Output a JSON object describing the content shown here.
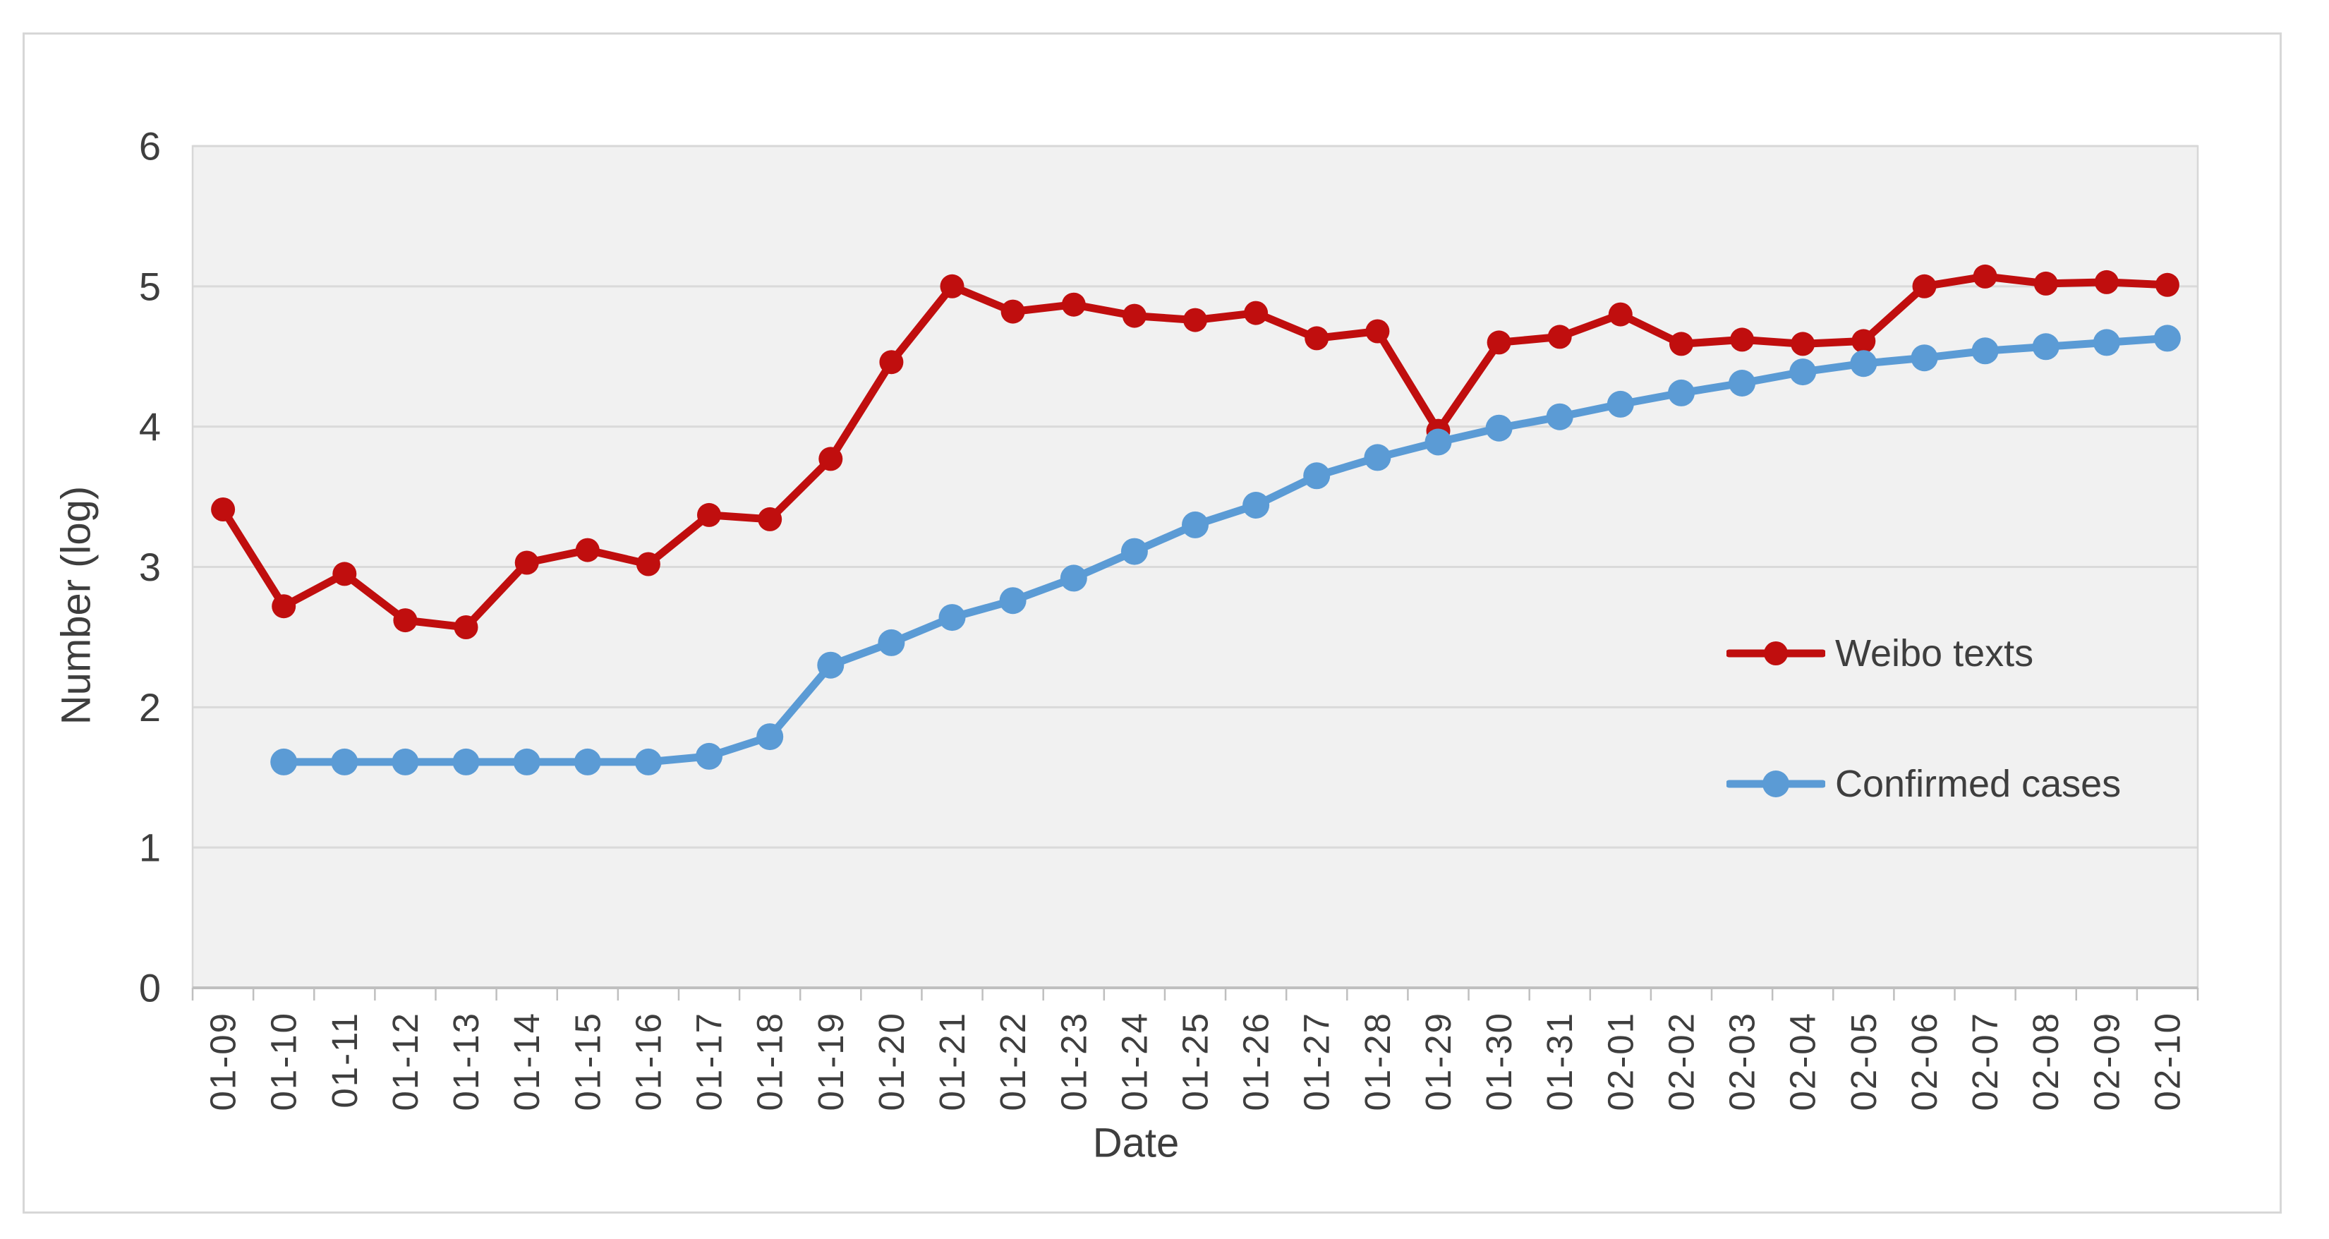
{
  "theme": {
    "page_background": "#FFFFFF",
    "figure_border_color": "#D7D7D7",
    "plot_background": "#F1F1F1",
    "plot_border_color": "#D7D7D7",
    "gridline_color": "#DADADA",
    "axis_color": "#BFBFBF",
    "text_color": "#3E3E3E"
  },
  "chart_data": {
    "type": "line",
    "title": "",
    "xlabel": "Date",
    "ylabel": "Number (log)",
    "ylim": [
      0,
      6
    ],
    "yticks": [
      0,
      1,
      2,
      3,
      4,
      5,
      6
    ],
    "grid": "horizontal",
    "legend_position": "inside-right",
    "categories": [
      "01-09",
      "01-10",
      "01-11",
      "01-12",
      "01-13",
      "01-14",
      "01-15",
      "01-16",
      "01-17",
      "01-18",
      "01-19",
      "01-20",
      "01-21",
      "01-22",
      "01-23",
      "01-24",
      "01-25",
      "01-26",
      "01-27",
      "01-28",
      "01-29",
      "01-30",
      "01-31",
      "02-01",
      "02-02",
      "02-03",
      "02-04",
      "02-05",
      "02-06",
      "02-07",
      "02-08",
      "02-09",
      "02-10"
    ],
    "series": [
      {
        "id": "weibo-texts",
        "name": "Weibo texts",
        "color": "#C00E0E",
        "values": [
          3.41,
          2.72,
          2.95,
          2.62,
          2.57,
          3.03,
          3.12,
          3.02,
          3.37,
          3.34,
          3.77,
          4.46,
          5.0,
          4.82,
          4.87,
          4.79,
          4.76,
          4.81,
          4.63,
          4.68,
          3.97,
          4.6,
          4.64,
          4.8,
          4.59,
          4.62,
          4.59,
          4.61,
          5.0,
          5.07,
          5.02,
          5.03,
          5.01
        ]
      },
      {
        "id": "confirmed-cases",
        "name": "Confirmed cases",
        "color": "#5B9BD5",
        "values": [
          null,
          1.61,
          1.61,
          1.61,
          1.61,
          1.61,
          1.61,
          1.61,
          1.65,
          1.79,
          2.3,
          2.46,
          2.64,
          2.76,
          2.92,
          3.11,
          3.3,
          3.44,
          3.65,
          3.78,
          3.89,
          3.99,
          4.07,
          4.16,
          4.24,
          4.31,
          4.39,
          4.45,
          4.49,
          4.54,
          4.57,
          4.6,
          4.63
        ]
      }
    ]
  }
}
